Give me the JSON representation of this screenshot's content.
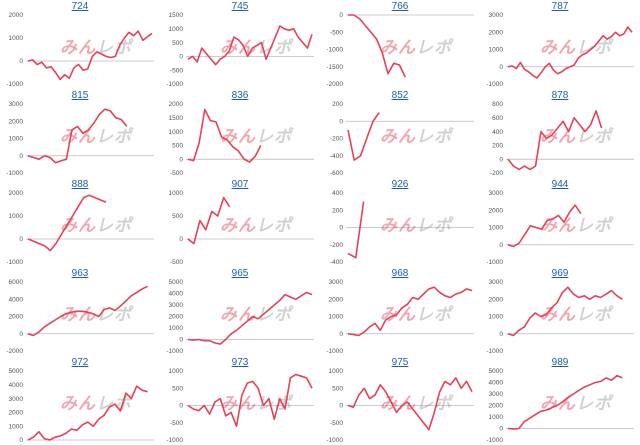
{
  "watermark": {
    "text": "みんレポ",
    "color_a": "#e63950",
    "color_b": "#9a9a9a"
  },
  "colors": {
    "line": "#e8405a",
    "axis": "#bbbbbb",
    "title": "#1a5fb4"
  },
  "chart_data": [
    {
      "type": "line",
      "title": "724",
      "yticks": [
        "2000",
        "1000",
        "0",
        "-1000"
      ],
      "ylim": [
        -1000,
        2000
      ],
      "values": [
        0,
        50,
        -150,
        -50,
        -300,
        -250,
        -500,
        -800,
        -600,
        -750,
        -300,
        -150,
        -400,
        -350,
        200,
        400,
        300,
        200,
        150,
        200,
        700,
        1000,
        1250,
        1100,
        1300,
        900,
        1050,
        1200
      ]
    },
    {
      "type": "line",
      "title": "745",
      "yticks": [
        "1500",
        "1000",
        "500",
        "0",
        "-500",
        "-1000"
      ],
      "ylim": [
        -1000,
        1500
      ],
      "values": [
        -100,
        0,
        -200,
        300,
        100,
        -100,
        -300,
        -100,
        0,
        200,
        700,
        600,
        400,
        0,
        300,
        400,
        500,
        -100,
        300,
        700,
        1100,
        1000,
        950,
        1000,
        700,
        500,
        300,
        800
      ]
    },
    {
      "type": "line",
      "title": "766",
      "yticks": [
        "0",
        "-500",
        "-1000",
        "-1500",
        "-2000"
      ],
      "ylim": [
        -2000,
        0
      ],
      "values": [
        0,
        0,
        -100,
        -300,
        -500,
        -700,
        -1100,
        -1700,
        -1400,
        -1450,
        -1800
      ]
    },
    {
      "type": "line",
      "title": "787",
      "yticks": [
        "3000",
        "2000",
        "1000",
        "0",
        "-1000"
      ],
      "ylim": [
        -1000,
        3000
      ],
      "values": [
        0,
        50,
        -100,
        250,
        -150,
        -300,
        -500,
        -650,
        -350,
        0,
        200,
        -200,
        -400,
        -300,
        -100,
        0,
        100,
        500,
        700,
        800,
        1000,
        1200,
        1500,
        1800,
        1600,
        1750,
        2000,
        1800,
        1900,
        2300,
        2000
      ]
    },
    {
      "type": "line",
      "title": "815",
      "yticks": [
        "3000",
        "2000",
        "1000",
        "0",
        "-1000"
      ],
      "ylim": [
        -1000,
        3000
      ],
      "values": [
        0,
        -100,
        -200,
        0,
        -100,
        -400,
        -300,
        -200,
        1500,
        1700,
        1300,
        1500,
        1900,
        2400,
        2700,
        2600,
        2200,
        2100,
        1700
      ]
    },
    {
      "type": "line",
      "title": "836",
      "yticks": [
        "2000",
        "1500",
        "1000",
        "500",
        "0",
        "-500"
      ],
      "ylim": [
        -500,
        2000
      ],
      "values": [
        0,
        -50,
        600,
        1800,
        1400,
        1350,
        800,
        700,
        450,
        300,
        0,
        -100,
        100,
        500
      ]
    },
    {
      "type": "line",
      "title": "852",
      "yticks": [
        "200",
        "0",
        "-200",
        "-400",
        "-600"
      ],
      "ylim": [
        -600,
        200
      ],
      "values": [
        -100,
        -450,
        -400,
        -200,
        0,
        100
      ]
    },
    {
      "type": "line",
      "title": "878",
      "yticks": [
        "800",
        "600",
        "400",
        "200",
        "0",
        "-200"
      ],
      "ylim": [
        -200,
        800
      ],
      "values": [
        0,
        -100,
        -150,
        -100,
        -150,
        -100,
        400,
        300,
        350,
        450,
        550,
        400,
        600,
        500,
        400,
        500,
        700,
        450
      ]
    },
    {
      "type": "line",
      "title": "888",
      "yticks": [
        "2000",
        "1000",
        "0",
        "-1000"
      ],
      "ylim": [
        -1000,
        2000
      ],
      "values": [
        0,
        -100,
        -200,
        -300,
        -500,
        -200,
        200,
        600,
        1000,
        1400,
        1800,
        1900,
        1800,
        1700,
        1600
      ]
    },
    {
      "type": "line",
      "title": "907",
      "yticks": [
        "1000",
        "500",
        "0",
        "-500"
      ],
      "ylim": [
        -500,
        1000
      ],
      "values": [
        0,
        -100,
        400,
        200,
        600,
        500,
        900,
        700
      ]
    },
    {
      "type": "line",
      "title": "926",
      "yticks": [
        "400",
        "200",
        "0",
        "-200",
        "-400"
      ],
      "ylim": [
        -400,
        400
      ],
      "values": [
        -300,
        -350,
        300
      ]
    },
    {
      "type": "line",
      "title": "944",
      "yticks": [
        "3000",
        "2000",
        "1000",
        "0",
        "-1000"
      ],
      "ylim": [
        -1000,
        3000
      ],
      "values": [
        0,
        -100,
        100,
        600,
        1100,
        1000,
        900,
        1400,
        1500,
        1700,
        1300,
        1900,
        2300,
        1800
      ]
    },
    {
      "type": "line",
      "title": "963",
      "yticks": [
        "6000",
        "4000",
        "2000",
        "0",
        "-2000"
      ],
      "ylim": [
        -2000,
        6000
      ],
      "values": [
        0,
        -200,
        200,
        800,
        1200,
        1600,
        2000,
        2300,
        2500,
        2600,
        2600,
        2500,
        2300,
        2000,
        2800,
        3000,
        2700,
        3200,
        3800,
        4400,
        4800,
        5200,
        5500
      ]
    },
    {
      "type": "line",
      "title": "965",
      "yticks": [
        "5000",
        "4000",
        "3000",
        "2000",
        "1000",
        "0",
        "-1000"
      ],
      "ylim": [
        -1000,
        5000
      ],
      "values": [
        0,
        -50,
        0,
        -100,
        -100,
        -300,
        -400,
        0,
        500,
        800,
        1200,
        1600,
        2000,
        1800,
        2200,
        2600,
        3000,
        3400,
        3900,
        3700,
        3500,
        3800,
        4100,
        3900
      ]
    },
    {
      "type": "line",
      "title": "968",
      "yticks": [
        "3000",
        "2000",
        "1000",
        "0",
        "-1000"
      ],
      "ylim": [
        -1000,
        3000
      ],
      "values": [
        0,
        -50,
        -100,
        100,
        400,
        600,
        200,
        800,
        1000,
        1100,
        1500,
        1700,
        2100,
        2000,
        2300,
        2600,
        2700,
        2400,
        2200,
        2100,
        2300,
        2400,
        2600,
        2500
      ]
    },
    {
      "type": "line",
      "title": "969",
      "yticks": [
        "3000",
        "2000",
        "1000",
        "0",
        "-1000"
      ],
      "ylim": [
        -1000,
        3000
      ],
      "values": [
        0,
        -100,
        200,
        400,
        900,
        1200,
        1000,
        1100,
        1500,
        1800,
        2400,
        2700,
        2300,
        2100,
        2200,
        2000,
        2200,
        2100,
        2300,
        2500,
        2200,
        2000
      ]
    },
    {
      "type": "line",
      "title": "972",
      "yticks": [
        "5000",
        "4000",
        "3000",
        "2000",
        "1000",
        "0"
      ],
      "ylim": [
        0,
        5000
      ],
      "values": [
        0,
        200,
        600,
        100,
        0,
        200,
        300,
        500,
        800,
        700,
        1100,
        1300,
        1000,
        1500,
        1800,
        2400,
        2600,
        2100,
        3400,
        3000,
        3900,
        3600,
        3500
      ]
    },
    {
      "type": "line",
      "title": "973",
      "yticks": [
        "1000",
        "500",
        "0",
        "-500",
        "-1000"
      ],
      "ylim": [
        -1000,
        1000
      ],
      "values": [
        0,
        -100,
        -150,
        0,
        -250,
        100,
        200,
        -300,
        -200,
        -600,
        300,
        650,
        700,
        500,
        0,
        200,
        -400,
        200,
        -100,
        800,
        900,
        850,
        800,
        500
      ]
    },
    {
      "type": "line",
      "title": "975",
      "yticks": [
        "1000",
        "500",
        "0",
        "-500",
        "-1000"
      ],
      "ylim": [
        -1000,
        1000
      ],
      "values": [
        0,
        -50,
        300,
        500,
        200,
        300,
        600,
        400,
        100,
        -200,
        0,
        100,
        -100,
        -300,
        -500,
        -700,
        -200,
        400,
        700,
        600,
        800,
        500,
        700,
        400
      ]
    },
    {
      "type": "line",
      "title": "989",
      "yticks": [
        "5000",
        "4000",
        "3000",
        "2000",
        "1000",
        "0",
        "-1000"
      ],
      "ylim": [
        -1000,
        5000
      ],
      "values": [
        0,
        -50,
        0,
        600,
        900,
        1200,
        1500,
        1600,
        1800,
        2000,
        2300,
        2700,
        3000,
        3300,
        3600,
        3800,
        4000,
        4100,
        4400,
        4200,
        4600,
        4400
      ]
    }
  ]
}
